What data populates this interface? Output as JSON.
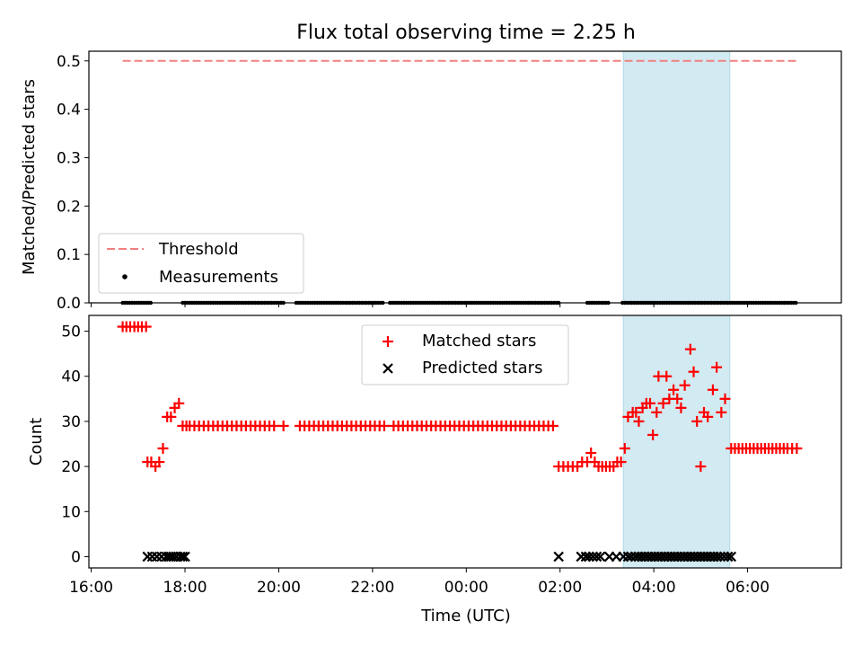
{
  "chart_data": [
    {
      "type": "scatter",
      "title": "Flux total observing time = 2.25 h",
      "xlabel": "",
      "ylabel": "Matched/Predicted stars",
      "ylim": [
        0,
        0.52
      ],
      "yticks": [
        "0.0",
        "0.1",
        "0.2",
        "0.3",
        "0.4",
        "0.5"
      ],
      "xticks_shown": false,
      "threshold": {
        "name": "Threshold",
        "value": 0.5,
        "x_start": 16.67,
        "x_end": 31.05,
        "color": "#f08080"
      },
      "measurements": {
        "name": "Measurements",
        "color": "#000000",
        "segments": [
          [
            16.67,
            17.31
          ],
          [
            17.95,
            20.1
          ],
          [
            20.37,
            22.25
          ],
          [
            22.37,
            25.97
          ],
          [
            26.58,
            27.03
          ],
          [
            27.33,
            31.05
          ]
        ]
      },
      "shaded_region": {
        "x_start": 27.35,
        "x_end": 29.62,
        "color": "#add8e6"
      },
      "legend": "lower-left"
    },
    {
      "type": "scatter",
      "xlabel": "Time (UTC)",
      "ylabel": "Count",
      "ylim": [
        -2.5,
        53.5
      ],
      "yticks": [
        "0",
        "10",
        "20",
        "30",
        "40",
        "50"
      ],
      "xticks": [
        "16:00",
        "18:00",
        "20:00",
        "22:00",
        "00:00",
        "02:00",
        "04:00",
        "06:00"
      ],
      "xtick_values": [
        16,
        18,
        20,
        22,
        24,
        26,
        28,
        30
      ],
      "xlim": [
        15.95,
        32.0
      ],
      "shaded_region": {
        "x_start": 27.35,
        "x_end": 29.62,
        "color": "#add8e6"
      },
      "legend": "upper-center",
      "series": [
        {
          "name": "Matched stars",
          "marker": "+",
          "color": "#ff0000",
          "points": [
            [
              16.67,
              51
            ],
            [
              16.75,
              51
            ],
            [
              16.83,
              51
            ],
            [
              16.92,
              51
            ],
            [
              17.0,
              51
            ],
            [
              17.08,
              51
            ],
            [
              17.17,
              51
            ],
            [
              17.2,
              21
            ],
            [
              17.28,
              21
            ],
            [
              17.37,
              20
            ],
            [
              17.45,
              21
            ],
            [
              17.53,
              24
            ],
            [
              17.62,
              31
            ],
            [
              17.7,
              31
            ],
            [
              17.78,
              33
            ],
            [
              17.87,
              34
            ],
            [
              17.95,
              29
            ],
            [
              18.03,
              29
            ],
            [
              18.1,
              29
            ],
            [
              18.2,
              29
            ],
            [
              18.3,
              29
            ],
            [
              18.4,
              29
            ],
            [
              18.5,
              29
            ],
            [
              18.6,
              29
            ],
            [
              18.7,
              29
            ],
            [
              18.8,
              29
            ],
            [
              18.9,
              29
            ],
            [
              19.0,
              29
            ],
            [
              19.1,
              29
            ],
            [
              19.2,
              29
            ],
            [
              19.3,
              29
            ],
            [
              19.4,
              29
            ],
            [
              19.5,
              29
            ],
            [
              19.6,
              29
            ],
            [
              19.7,
              29
            ],
            [
              19.8,
              29
            ],
            [
              19.9,
              29
            ],
            [
              20.1,
              29
            ],
            [
              20.45,
              29
            ],
            [
              20.55,
              29
            ],
            [
              20.65,
              29
            ],
            [
              20.75,
              29
            ],
            [
              20.85,
              29
            ],
            [
              20.95,
              29
            ],
            [
              21.05,
              29
            ],
            [
              21.15,
              29
            ],
            [
              21.25,
              29
            ],
            [
              21.35,
              29
            ],
            [
              21.45,
              29
            ],
            [
              21.55,
              29
            ],
            [
              21.65,
              29
            ],
            [
              21.75,
              29
            ],
            [
              21.85,
              29
            ],
            [
              21.95,
              29
            ],
            [
              22.05,
              29
            ],
            [
              22.15,
              29
            ],
            [
              22.25,
              29
            ],
            [
              22.45,
              29
            ],
            [
              22.55,
              29
            ],
            [
              22.65,
              29
            ],
            [
              22.75,
              29
            ],
            [
              22.85,
              29
            ],
            [
              22.95,
              29
            ],
            [
              23.05,
              29
            ],
            [
              23.15,
              29
            ],
            [
              23.25,
              29
            ],
            [
              23.35,
              29
            ],
            [
              23.45,
              29
            ],
            [
              23.55,
              29
            ],
            [
              23.65,
              29
            ],
            [
              23.75,
              29
            ],
            [
              23.85,
              29
            ],
            [
              23.95,
              29
            ],
            [
              24.05,
              29
            ],
            [
              24.15,
              29
            ],
            [
              24.25,
              29
            ],
            [
              24.35,
              29
            ],
            [
              24.45,
              29
            ],
            [
              24.55,
              29
            ],
            [
              24.65,
              29
            ],
            [
              24.75,
              29
            ],
            [
              24.85,
              29
            ],
            [
              24.95,
              29
            ],
            [
              25.05,
              29
            ],
            [
              25.15,
              29
            ],
            [
              25.25,
              29
            ],
            [
              25.35,
              29
            ],
            [
              25.45,
              29
            ],
            [
              25.55,
              29
            ],
            [
              25.65,
              29
            ],
            [
              25.75,
              29
            ],
            [
              25.85,
              29
            ],
            [
              25.97,
              20
            ],
            [
              26.07,
              20
            ],
            [
              26.17,
              20
            ],
            [
              26.27,
              20
            ],
            [
              26.37,
              20
            ],
            [
              26.47,
              21
            ],
            [
              26.58,
              21
            ],
            [
              26.66,
              23
            ],
            [
              26.74,
              21
            ],
            [
              26.82,
              20
            ],
            [
              26.9,
              20
            ],
            [
              26.98,
              20
            ],
            [
              27.06,
              20
            ],
            [
              27.14,
              20
            ],
            [
              27.22,
              21
            ],
            [
              27.3,
              21
            ],
            [
              27.38,
              24
            ],
            [
              27.45,
              31
            ],
            [
              27.55,
              32
            ],
            [
              27.62,
              32
            ],
            [
              27.68,
              30
            ],
            [
              27.76,
              33
            ],
            [
              27.84,
              34
            ],
            [
              27.92,
              34
            ],
            [
              27.98,
              27
            ],
            [
              28.06,
              32
            ],
            [
              28.1,
              40
            ],
            [
              28.2,
              34
            ],
            [
              28.27,
              40
            ],
            [
              28.33,
              35
            ],
            [
              28.42,
              37
            ],
            [
              28.5,
              35
            ],
            [
              28.58,
              33
            ],
            [
              28.66,
              38
            ],
            [
              28.78,
              46
            ],
            [
              28.85,
              41
            ],
            [
              28.92,
              30
            ],
            [
              29.0,
              20
            ],
            [
              29.07,
              32
            ],
            [
              29.15,
              31
            ],
            [
              29.26,
              37
            ],
            [
              29.34,
              42
            ],
            [
              29.44,
              32
            ],
            [
              29.52,
              35
            ],
            [
              29.65,
              24
            ],
            [
              29.73,
              24
            ],
            [
              29.81,
              24
            ],
            [
              29.89,
              24
            ],
            [
              29.97,
              24
            ],
            [
              30.05,
              24
            ],
            [
              30.13,
              24
            ],
            [
              30.21,
              24
            ],
            [
              30.29,
              24
            ],
            [
              30.37,
              24
            ],
            [
              30.45,
              24
            ],
            [
              30.53,
              24
            ],
            [
              30.61,
              24
            ],
            [
              30.69,
              24
            ],
            [
              30.77,
              24
            ],
            [
              30.85,
              24
            ],
            [
              30.95,
              24
            ],
            [
              31.05,
              24
            ]
          ]
        },
        {
          "name": "Predicted stars",
          "marker": "x",
          "color": "#000000",
          "points": [
            [
              17.2,
              0
            ],
            [
              17.3,
              0
            ],
            [
              17.4,
              0
            ],
            [
              17.5,
              0
            ],
            [
              17.6,
              0
            ],
            [
              17.65,
              0
            ],
            [
              17.7,
              0
            ],
            [
              17.75,
              0
            ],
            [
              17.82,
              0
            ],
            [
              17.9,
              0
            ],
            [
              17.95,
              0
            ],
            [
              18.0,
              0
            ],
            [
              25.97,
              0
            ],
            [
              26.45,
              0
            ],
            [
              26.55,
              0
            ],
            [
              26.62,
              0
            ],
            [
              26.7,
              0
            ],
            [
              26.78,
              0
            ],
            [
              26.86,
              0
            ],
            [
              27.05,
              0
            ],
            [
              27.2,
              0
            ],
            [
              27.35,
              0
            ],
            [
              27.45,
              0
            ],
            [
              27.52,
              0
            ],
            [
              27.6,
              0
            ],
            [
              27.67,
              0
            ],
            [
              27.74,
              0
            ],
            [
              27.81,
              0
            ],
            [
              27.88,
              0
            ],
            [
              27.95,
              0
            ],
            [
              28.02,
              0
            ],
            [
              28.09,
              0
            ],
            [
              28.16,
              0
            ],
            [
              28.23,
              0
            ],
            [
              28.3,
              0
            ],
            [
              28.37,
              0
            ],
            [
              28.44,
              0
            ],
            [
              28.51,
              0
            ],
            [
              28.58,
              0
            ],
            [
              28.65,
              0
            ],
            [
              28.72,
              0
            ],
            [
              28.79,
              0
            ],
            [
              28.86,
              0
            ],
            [
              28.93,
              0
            ],
            [
              29.0,
              0
            ],
            [
              29.07,
              0
            ],
            [
              29.14,
              0
            ],
            [
              29.21,
              0
            ],
            [
              29.28,
              0
            ],
            [
              29.35,
              0
            ],
            [
              29.42,
              0
            ],
            [
              29.5,
              0
            ],
            [
              29.58,
              0
            ],
            [
              29.65,
              0
            ]
          ]
        }
      ]
    }
  ]
}
